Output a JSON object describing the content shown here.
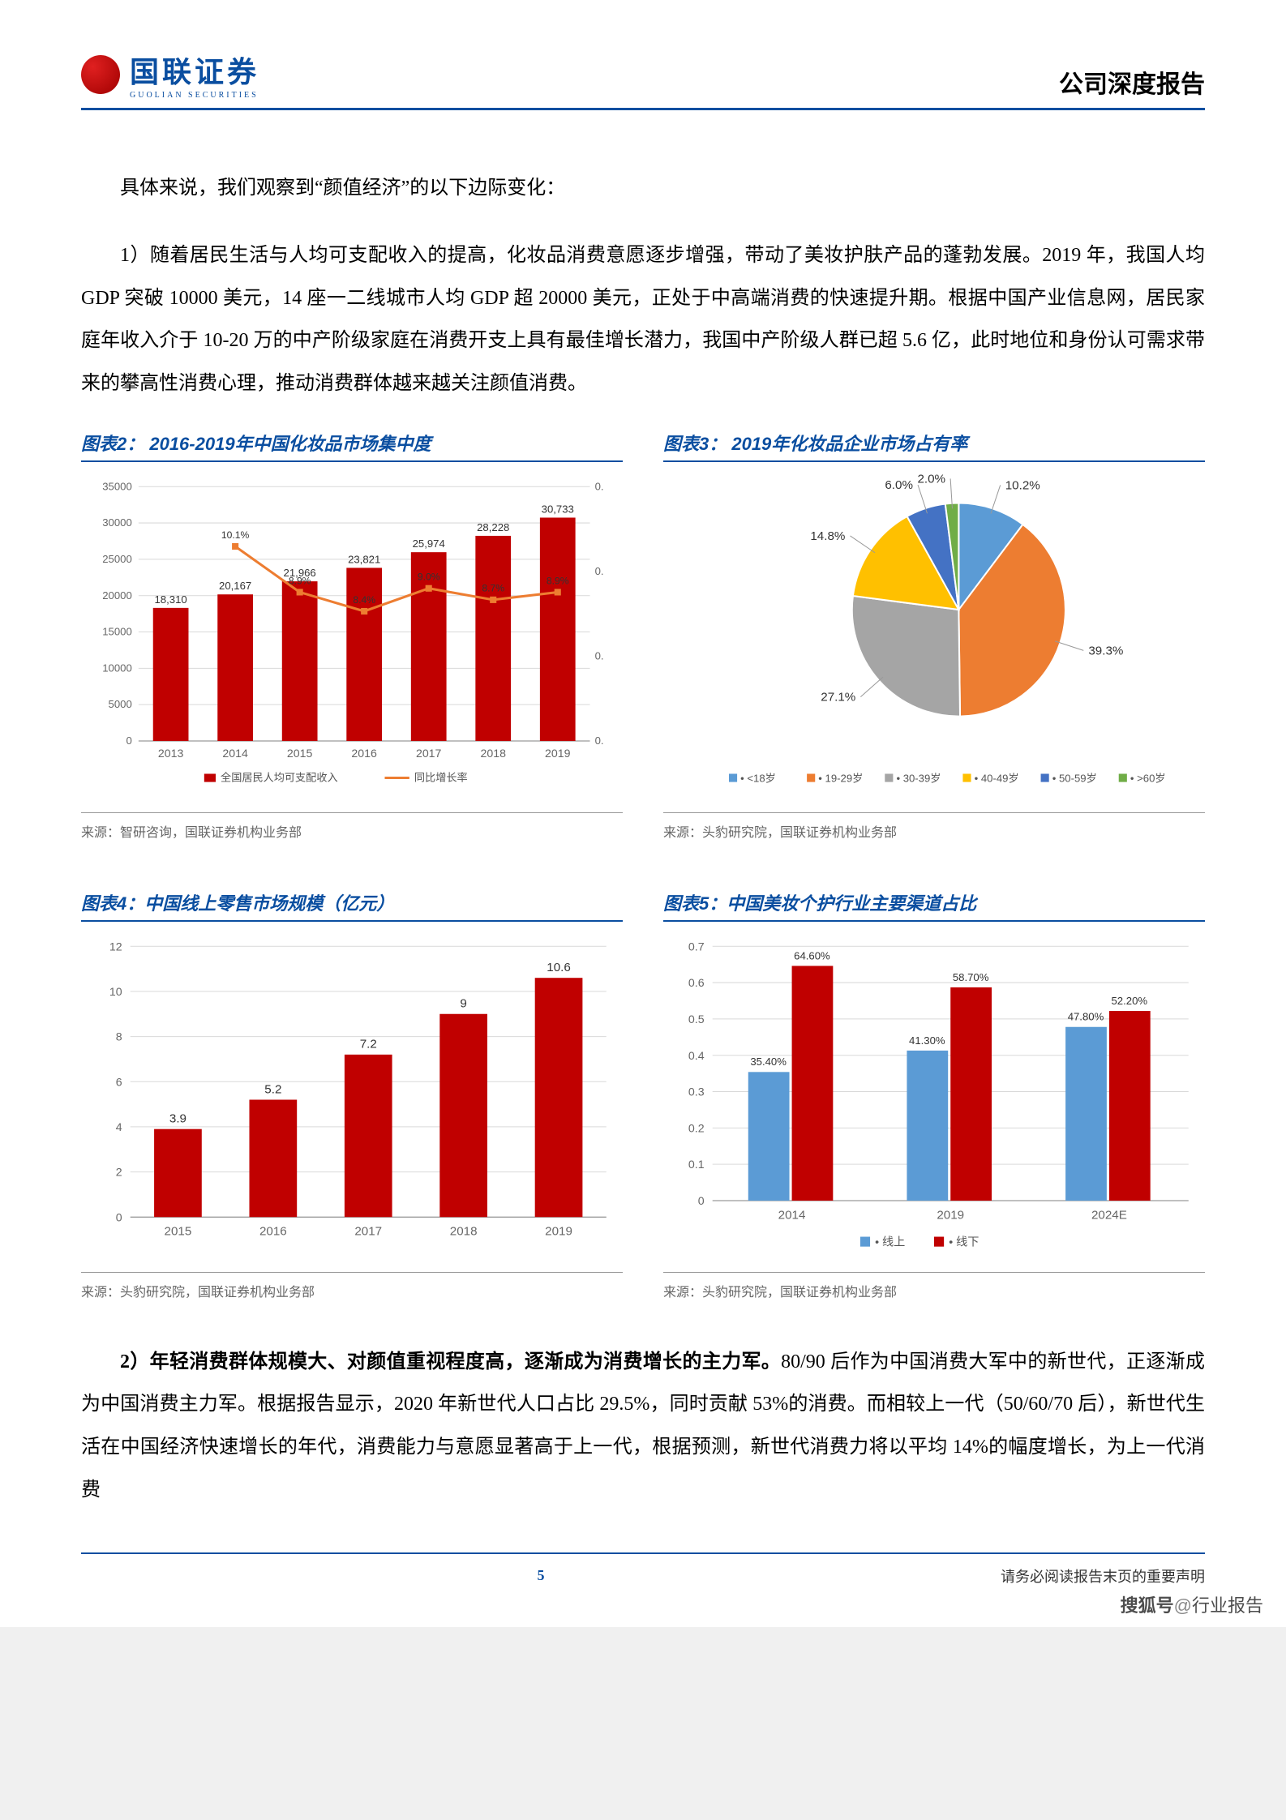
{
  "header": {
    "logo_cn": "国联证券",
    "logo_en": "GUOLIAN SECURITIES",
    "report_title": "公司深度报告"
  },
  "body": {
    "para1": "具体来说，我们观察到“颜值经济”的以下边际变化：",
    "para2": "1）随着居民生活与人均可支配收入的提高，化妆品消费意愿逐步增强，带动了美妆护肤产品的蓬勃发展。2019 年，我国人均 GDP 突破 10000 美元，14 座一二线城市人均 GDP 超 20000 美元，正处于中高端消费的快速提升期。根据中国产业信息网，居民家庭年收入介于 10-20 万的中产阶级家庭在消费开支上具有最佳增长潜力，我国中产阶级人群已超 5.6 亿，此时地位和身份认可需求带来的攀高性消费心理，推动消费群体越来越关注颜值消费。",
    "para3_bold": "2）年轻消费群体规模大、对颜值重视程度高，逐渐成为消费增长的主力军。",
    "para3_rest": "80/90 后作为中国消费大军中的新世代，正逐渐成为中国消费主力军。根据报告显示，2020 年新世代人口占比 29.5%，同时贡献 53%的消费。而相较上一代（50/60/70 后），新世代生活在中国经济快速增长的年代，消费能力与意愿显著高于上一代，根据预测，新世代消费力将以平均 14%的幅度增长，为上一代消费"
  },
  "chart2": {
    "title": "图表2：   2016-2019年中国化妆品市场集中度",
    "type": "bar+line",
    "categories": [
      "2013",
      "2014",
      "2015",
      "2016",
      "2017",
      "2018",
      "2019"
    ],
    "bar_values": [
      18310,
      20167,
      21966,
      23821,
      25974,
      28228,
      30733
    ],
    "bar_labels": [
      "18,310",
      "20,167",
      "21,966",
      "23,821",
      "25,974",
      "28,228",
      "30,733"
    ],
    "line_values": [
      null,
      10.1,
      8.9,
      8.4,
      9.0,
      8.7,
      8.9
    ],
    "line_labels": [
      "",
      "10.1%",
      "8.9%",
      "8.4%",
      "9.0%",
      "8.7%",
      "8.9%"
    ],
    "y_ticks": [
      0,
      5000,
      10000,
      15000,
      20000,
      25000,
      30000,
      35000
    ],
    "y2_ticks": [
      "0.",
      "0.",
      "0.",
      "0."
    ],
    "bar_color": "#c00000",
    "line_color": "#ed7d31",
    "grid_color": "#d9d9d9",
    "axis_color": "#808080",
    "legend": [
      "全国居民人均可支配收入",
      "同比增长率"
    ],
    "source": "来源：智研咨询，国联证券机构业务部"
  },
  "chart3": {
    "title": "图表3：   2019年化妆品企业市场占有率",
    "type": "pie",
    "slices": [
      {
        "label": "<18岁",
        "value": 10.2,
        "color": "#5b9bd5",
        "label_text": "10.2%"
      },
      {
        "label": "19-29岁",
        "value": 39.3,
        "color": "#ed7d31",
        "label_text": "39.3%"
      },
      {
        "label": "30-39岁",
        "value": 27.1,
        "color": "#a5a5a5",
        "label_text": "27.1%"
      },
      {
        "label": "40-49岁",
        "value": 14.8,
        "color": "#ffc000",
        "label_text": "14.8%"
      },
      {
        "label": "50-59岁",
        "value": 6.0,
        "color": "#4472c4",
        "label_text": "6.0%"
      },
      {
        "label": ">60岁",
        "value": 2.0,
        "color": "#70ad47",
        "label_text": "2.0%"
      }
    ],
    "source": "来源：头豹研究院，国联证券机构业务部"
  },
  "chart4": {
    "title": "图表4：中国线上零售市场规模（亿元）",
    "type": "bar",
    "categories": [
      "2015",
      "2016",
      "2017",
      "2018",
      "2019"
    ],
    "values": [
      3.9,
      5.2,
      7.2,
      9,
      10.6
    ],
    "labels": [
      "3.9",
      "5.2",
      "7.2",
      "9",
      "10.6"
    ],
    "y_ticks": [
      0,
      2,
      4,
      6,
      8,
      10,
      12
    ],
    "bar_color": "#c00000",
    "grid_color": "#d9d9d9",
    "axis_color": "#808080",
    "source": "来源：头豹研究院，国联证券机构业务部"
  },
  "chart5": {
    "title": "图表5：中国美妆个护行业主要渠道占比",
    "type": "grouped-bar",
    "categories": [
      "2014",
      "2019",
      "2024E"
    ],
    "series": [
      {
        "name": "线上",
        "color": "#5b9bd5",
        "values": [
          35.4,
          41.3,
          47.8
        ],
        "labels": [
          "35.40%",
          "41.30%",
          "47.80%"
        ]
      },
      {
        "name": "线下",
        "color": "#c00000",
        "values": [
          64.6,
          58.7,
          52.2
        ],
        "labels": [
          "64.60%",
          "58.70%",
          "52.20%"
        ]
      }
    ],
    "y_ticks": [
      "0",
      "0.1",
      "0.2",
      "0.3",
      "0.4",
      "0.5",
      "0.6",
      "0.7"
    ],
    "y_max": 0.7,
    "grid_color": "#d9d9d9",
    "axis_color": "#808080",
    "source": "来源：头豹研究院，国联证券机构业务部"
  },
  "footer": {
    "page_num": "5",
    "disclaimer": "请务必阅读报告末页的重要声明"
  },
  "watermark": {
    "brand": "搜狐号",
    "at": "@",
    "name": "行业报告"
  }
}
